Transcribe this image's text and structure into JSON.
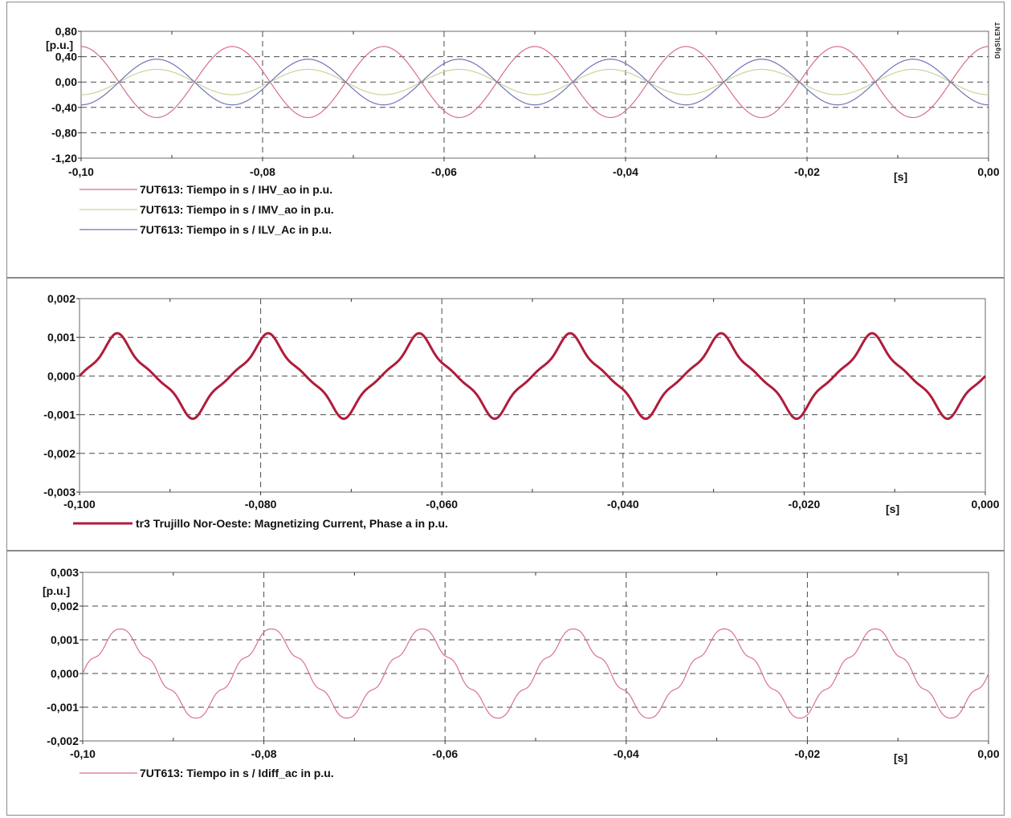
{
  "chart_data": [
    {
      "type": "line",
      "panel": 1,
      "x_ticks": [
        "-0,10",
        "-0,08",
        "-0,06",
        "-0,04",
        "-0,02",
        "0,00"
      ],
      "x_values": [
        -0.1,
        -0.08,
        -0.06,
        -0.04,
        -0.02,
        0.0
      ],
      "xlim": [
        -0.1,
        0.0
      ],
      "x_unit": "[s]",
      "y_ticks": [
        "0,80",
        "0,40",
        "0,00",
        "-0,40",
        "-0,80",
        "-1,20"
      ],
      "y_values": [
        0.8,
        0.4,
        0.0,
        -0.4,
        -0.8,
        -1.2
      ],
      "ylim": [
        -1.2,
        0.8
      ],
      "y_unit": "[p.u.]",
      "grid": true,
      "logo": "DIgSILENT",
      "series": [
        {
          "name": "7UT613: Tiempo  in s / IHV_ao in p.u.",
          "color": "#d4708a",
          "amplitude": 0.56,
          "freq_hz": 60,
          "phase_deg": 90,
          "harmonics": []
        },
        {
          "name": "7UT613: Tiempo  in s / IMV_ao in p.u.",
          "color": "#c9d49a",
          "amplitude": 0.2,
          "freq_hz": 60,
          "phase_deg": 270,
          "harmonics": []
        },
        {
          "name": "7UT613: Tiempo  in s / ILV_Ac in p.u.",
          "color": "#6f74b8",
          "amplitude": 0.36,
          "freq_hz": 60,
          "phase_deg": 270,
          "harmonics": []
        }
      ]
    },
    {
      "type": "line",
      "panel": 2,
      "x_ticks": [
        "-0,100",
        "-0,080",
        "-0,060",
        "-0,040",
        "-0,020",
        "0,000"
      ],
      "x_values": [
        -0.1,
        -0.08,
        -0.06,
        -0.04,
        -0.02,
        0.0
      ],
      "xlim": [
        -0.1,
        0.0
      ],
      "x_unit": "[s]",
      "y_ticks": [
        "0,002",
        "0,001",
        "0,000",
        "-0,001",
        "-0,002",
        "-0,003"
      ],
      "y_values": [
        0.002,
        0.001,
        0.0,
        -0.001,
        -0.002,
        -0.003
      ],
      "ylim": [
        -0.003,
        0.002
      ],
      "y_unit": "",
      "grid": true,
      "series": [
        {
          "name": "tr3 Trujillo Nor-Oeste: Magnetizing Current, Phase a in p.u.",
          "color": "#b01c3c",
          "amplitude": 0.00087,
          "freq_hz": 60,
          "phase_deg": 0,
          "harmonics": [
            [
              3,
              -0.2
            ],
            [
              5,
              0.07
            ]
          ]
        }
      ]
    },
    {
      "type": "line",
      "panel": 3,
      "x_ticks": [
        "-0,10",
        "-0,08",
        "-0,06",
        "-0,04",
        "-0,02",
        "0,00"
      ],
      "x_values": [
        -0.1,
        -0.08,
        -0.06,
        -0.04,
        -0.02,
        0.0
      ],
      "xlim": [
        -0.1,
        0.0
      ],
      "x_unit": "[s]",
      "y_ticks": [
        "0,003",
        "0,002",
        "0,001",
        "0,000",
        "-0,001",
        "-0,002"
      ],
      "y_values": [
        0.003,
        0.002,
        0.001,
        0.0,
        -0.001,
        -0.002
      ],
      "ylim": [
        -0.002,
        0.003
      ],
      "y_unit": "[p.u.]",
      "grid": true,
      "series": [
        {
          "name": "7UT613: Tiempo  in s / Idiff_ac in p.u.",
          "color": "#d8728e",
          "amplitude": 0.00118,
          "freq_hz": 60,
          "phase_deg": 0,
          "harmonics": [
            [
              3,
              -0.1
            ],
            [
              5,
              0.07
            ],
            [
              7,
              0.05
            ]
          ]
        }
      ]
    }
  ]
}
